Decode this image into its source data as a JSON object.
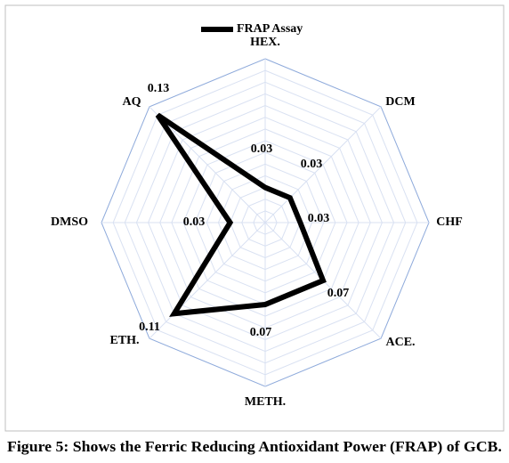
{
  "chart_data": {
    "type": "radar",
    "caption": "Figure 5: Shows the Ferric Reducing Antioxidant Power (FRAP) of GCB.",
    "categories": [
      "HEX.",
      "DCM",
      "CHF",
      "ACE.",
      "METH.",
      "ETH.",
      "DMSO",
      "AQ"
    ],
    "series": [
      {
        "name": "FRAP Assay",
        "color": "#000000",
        "values": [
          0.03,
          0.03,
          0.03,
          0.07,
          0.07,
          0.11,
          0.03,
          0.13
        ]
      }
    ],
    "ylim": [
      0,
      0.14
    ],
    "yticks": [
      0,
      0.01,
      0.02,
      0.03,
      0.04,
      0.05,
      0.06,
      0.07,
      0.08,
      0.09,
      0.1,
      0.11,
      0.12,
      0.13,
      0.14
    ],
    "grid": true,
    "legend": "top"
  }
}
